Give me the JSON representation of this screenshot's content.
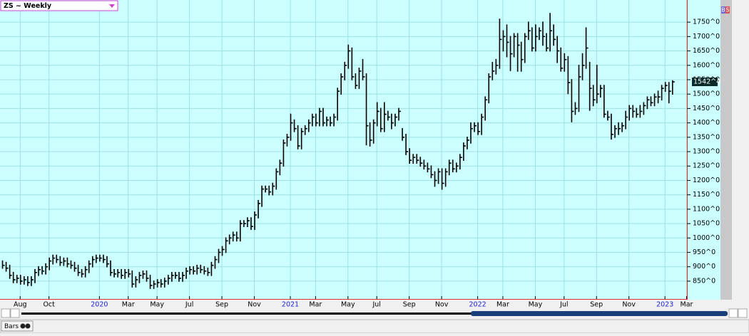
{
  "chart_data": {
    "type": "ohlc",
    "title": "ZS ~ Weekly",
    "color": "#000000",
    "background": "#ccffff",
    "grid": true,
    "xlim": [
      -0.6,
      190.1
    ],
    "xticks": [
      {
        "value": 5,
        "label": "Aug"
      },
      {
        "value": 13,
        "label": "Oct"
      },
      {
        "value": 27,
        "label": "2020"
      },
      {
        "value": 35,
        "label": "Mar"
      },
      {
        "value": 43,
        "label": "May"
      },
      {
        "value": 52,
        "label": "Jul"
      },
      {
        "value": 61,
        "label": "Sep"
      },
      {
        "value": 70,
        "label": "Nov"
      },
      {
        "value": 80,
        "label": "2021"
      },
      {
        "value": 87,
        "label": "Mar"
      },
      {
        "value": 96,
        "label": "May"
      },
      {
        "value": 104,
        "label": "Jul"
      },
      {
        "value": 113,
        "label": "Sep"
      },
      {
        "value": 122,
        "label": "Nov"
      },
      {
        "value": 132,
        "label": "2022"
      },
      {
        "value": 139,
        "label": "Mar"
      },
      {
        "value": 148,
        "label": "May"
      },
      {
        "value": 156,
        "label": "Jul"
      },
      {
        "value": 165,
        "label": "Sep"
      },
      {
        "value": 174,
        "label": "Nov"
      },
      {
        "value": 184,
        "label": "2023"
      },
      {
        "value": 190,
        "label": "Mar"
      }
    ],
    "ylim": [
      788,
      1827
    ],
    "yticks": [
      {
        "value": 850,
        "label": "850^0"
      },
      {
        "value": 900,
        "label": "900^0"
      },
      {
        "value": 950,
        "label": "950^0"
      },
      {
        "value": 1000,
        "label": "1000^0"
      },
      {
        "value": 1050,
        "label": "1050^0"
      },
      {
        "value": 1100,
        "label": "1100^0"
      },
      {
        "value": 1150,
        "label": "1150^0"
      },
      {
        "value": 1200,
        "label": "1200^0"
      },
      {
        "value": 1250,
        "label": "1250^0"
      },
      {
        "value": 1300,
        "label": "1300^0"
      },
      {
        "value": 1350,
        "label": "1350^0"
      },
      {
        "value": 1400,
        "label": "1400^0"
      },
      {
        "value": 1450,
        "label": "1450^0"
      },
      {
        "value": 1500,
        "label": "1500^0"
      },
      {
        "value": 1550,
        "label": "1550^0"
      },
      {
        "value": 1600,
        "label": "1600^0"
      },
      {
        "value": 1650,
        "label": "1650^0"
      },
      {
        "value": 1700,
        "label": "1700^0"
      },
      {
        "value": 1750,
        "label": "1750^0"
      }
    ],
    "last_price": {
      "value": 1542.5,
      "label": "1542^4"
    },
    "high": [
      922,
      917,
      907,
      882,
      872,
      872,
      867,
      867,
      867,
      892,
      902,
      902,
      912,
      932,
      942,
      942,
      937,
      932,
      932,
      922,
      917,
      907,
      892,
      902,
      922,
      937,
      942,
      942,
      942,
      937,
      922,
      892,
      892,
      892,
      892,
      892,
      887,
      867,
      882,
      887,
      887,
      872,
      852,
      857,
      857,
      862,
      872,
      882,
      882,
      882,
      882,
      897,
      902,
      902,
      907,
      907,
      902,
      897,
      917,
      937,
      962,
      972,
      1002,
      1012,
      1022,
      1022,
      1062,
      1062,
      1072,
      1072,
      1092,
      1132,
      1182,
      1182,
      1182,
      1192,
      1242,
      1272,
      1342,
      1362,
      1432,
      1412,
      1392,
      1382,
      1392,
      1412,
      1432,
      1432,
      1452,
      1452,
      1422,
      1422,
      1432,
      1522,
      1572,
      1612,
      1672,
      1662,
      1572,
      1592,
      1622,
      1572,
      1402,
      1412,
      1472,
      1452,
      1472,
      1442,
      1432,
      1432,
      1452,
      1382,
      1362,
      1312,
      1292,
      1292,
      1282,
      1272,
      1262,
      1252,
      1232,
      1242,
      1242,
      1242,
      1272,
      1272,
      1262,
      1292,
      1332,
      1352,
      1402,
      1402,
      1402,
      1432,
      1492,
      1572,
      1612,
      1622,
      1762,
      1722,
      1742,
      1702,
      1712,
      1712,
      1682,
      1712,
      1752,
      1732,
      1742,
      1732,
      1752,
      1712,
      1782,
      1742,
      1702,
      1662,
      1642,
      1632,
      1552,
      1472,
      1602,
      1642,
      1732,
      1612,
      1532,
      1602,
      1532,
      1532,
      1442,
      1432,
      1392,
      1402,
      1402,
      1442,
      1462,
      1462,
      1452,
      1462,
      1472,
      1492,
      1492,
      1502,
      1512,
      1532,
      1542,
      1542,
      1548
    ],
    "low": [
      893,
      883,
      858,
      843,
      843,
      838,
      838,
      833,
      833,
      843,
      868,
      873,
      873,
      888,
      908,
      913,
      903,
      903,
      898,
      893,
      883,
      868,
      863,
      863,
      878,
      898,
      913,
      918,
      913,
      898,
      868,
      863,
      863,
      858,
      858,
      863,
      828,
      828,
      843,
      858,
      848,
      823,
      823,
      828,
      828,
      828,
      838,
      848,
      858,
      848,
      848,
      858,
      873,
      873,
      873,
      878,
      873,
      868,
      868,
      893,
      913,
      938,
      948,
      978,
      988,
      988,
      988,
      1038,
      1038,
      1028,
      1028,
      1068,
      1108,
      1158,
      1148,
      1148,
      1168,
      1218,
      1248,
      1318,
      1338,
      1368,
      1308,
      1308,
      1358,
      1368,
      1388,
      1388,
      1388,
      1388,
      1388,
      1388,
      1388,
      1408,
      1498,
      1548,
      1588,
      1548,
      1518,
      1518,
      1548,
      1322,
      1318,
      1328,
      1388,
      1368,
      1368,
      1408,
      1378,
      1388,
      1408,
      1338,
      1288,
      1258,
      1258,
      1258,
      1248,
      1238,
      1228,
      1208,
      1178,
      1188,
      1168,
      1178,
      1218,
      1228,
      1228,
      1238,
      1268,
      1308,
      1328,
      1368,
      1358,
      1358,
      1408,
      1468,
      1548,
      1568,
      1588,
      1648,
      1628,
      1580,
      1628,
      1578,
      1578,
      1608,
      1688,
      1648,
      1648,
      1688,
      1668,
      1648,
      1648,
      1668,
      1608,
      1578,
      1578,
      1500,
      1402,
      1428,
      1438,
      1548,
      1588,
      1442,
      1458,
      1468,
      1488,
      1418,
      1408,
      1342,
      1348,
      1358,
      1368,
      1378,
      1408,
      1418,
      1418,
      1418,
      1428,
      1448,
      1458,
      1458,
      1468,
      1478,
      1508,
      1468,
      1498
    ],
    "close": [
      905,
      895,
      870,
      855,
      860,
      850,
      855,
      845,
      855,
      880,
      890,
      885,
      900,
      920,
      930,
      925,
      915,
      920,
      910,
      905,
      895,
      880,
      875,
      890,
      910,
      925,
      930,
      930,
      925,
      910,
      880,
      875,
      880,
      870,
      880,
      875,
      840,
      855,
      870,
      875,
      860,
      835,
      840,
      845,
      840,
      850,
      860,
      870,
      870,
      860,
      870,
      885,
      890,
      885,
      895,
      890,
      885,
      880,
      905,
      925,
      950,
      960,
      990,
      1000,
      1010,
      1000,
      1050,
      1050,
      1060,
      1040,
      1080,
      1120,
      1170,
      1170,
      1160,
      1180,
      1230,
      1260,
      1330,
      1350,
      1400,
      1380,
      1320,
      1370,
      1380,
      1400,
      1420,
      1400,
      1440,
      1400,
      1410,
      1400,
      1420,
      1510,
      1560,
      1600,
      1650,
      1560,
      1530,
      1580,
      1560,
      1390,
      1340,
      1400,
      1440,
      1380,
      1430,
      1420,
      1400,
      1420,
      1440,
      1350,
      1300,
      1270,
      1280,
      1270,
      1260,
      1250,
      1240,
      1220,
      1200,
      1230,
      1190,
      1230,
      1260,
      1240,
      1250,
      1280,
      1320,
      1340,
      1380,
      1390,
      1370,
      1420,
      1480,
      1560,
      1580,
      1600,
      1690,
      1700,
      1680,
      1640,
      1700,
      1670,
      1620,
      1700,
      1720,
      1660,
      1700,
      1720,
      1700,
      1660,
      1720,
      1690,
      1650,
      1590,
      1620,
      1540,
      1440,
      1450,
      1560,
      1600,
      1660,
      1520,
      1480,
      1500,
      1520,
      1430,
      1420,
      1360,
      1380,
      1380,
      1390,
      1420,
      1450,
      1440,
      1430,
      1440,
      1460,
      1480,
      1470,
      1490,
      1490,
      1520,
      1530,
      1510,
      1542.5
    ]
  },
  "toolbar": {
    "chart_style": "Bars",
    "buy": "B",
    "sell": "S"
  }
}
